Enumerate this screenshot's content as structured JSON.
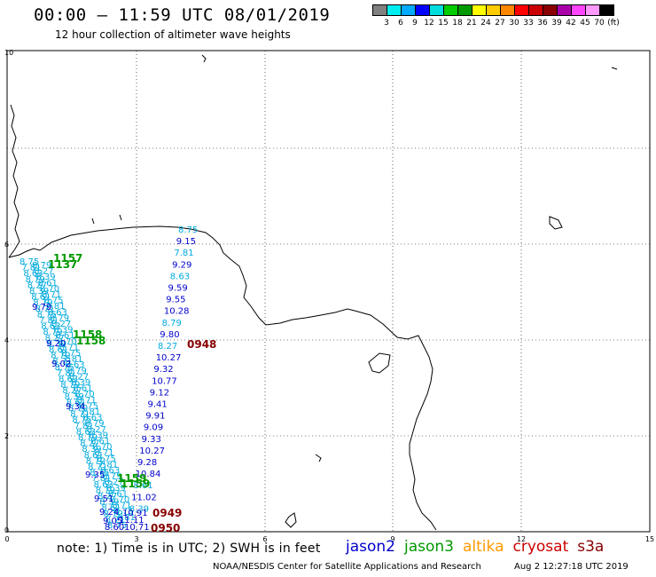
{
  "header": {
    "title": "00:00 – 11:59 UTC 08/01/2019",
    "subtitle": "12 hour collection of altimeter wave heights"
  },
  "legend": {
    "swatches": [
      "#808080",
      "#00eeee",
      "#00aaff",
      "#0000ff",
      "#00dddd",
      "#00cc00",
      "#009900",
      "#ffff00",
      "#ffcc00",
      "#ff8800",
      "#ff0000",
      "#cc0000",
      "#880000",
      "#aa00aa",
      "#ff44ff",
      "#ff99ff",
      "#000000"
    ],
    "labels": [
      "3",
      "6",
      "9",
      "12",
      "15",
      "18",
      "21",
      "24",
      "27",
      "30",
      "33",
      "36",
      "39",
      "42",
      "45",
      "70",
      "(ft)"
    ]
  },
  "axes": {
    "x_ticks": [
      "0",
      "3",
      "6",
      "9",
      "12",
      "15"
    ],
    "y_ticks": [
      "0",
      "2",
      "4",
      "6",
      "10"
    ]
  },
  "colors": {
    "jason2": "#0000cc",
    "jason3": "#009900",
    "altika": "#ff9900",
    "cryosat": "#cc0000",
    "s3a": "#880000",
    "light_track": "#00aadd",
    "coast": "#000000"
  },
  "tracks": {
    "jason2_dark": [
      "9.15",
      "9.29",
      "9.59",
      "9.55",
      "10.28",
      "9.80",
      "10.27",
      "9.32",
      "10.77",
      "9.12",
      "9.41",
      "9.91",
      "9.09",
      "9.33",
      "10.27",
      "9.28",
      "10.84",
      "11.02"
    ],
    "jason2_light": [
      "8.75",
      "7.81",
      "8.63",
      "8.79",
      "8.27",
      "8.39",
      "8.61",
      "8.70",
      "8.71"
    ],
    "left_track_visible": [
      "9.79",
      "9.20",
      "9.02",
      "9.34",
      "9.35",
      "9.51",
      "9.24",
      "9.05",
      "8.60"
    ],
    "bottom_cluster": [
      "10.71",
      "10.91",
      "11.11"
    ]
  },
  "time_labels": {
    "green": [
      "1157",
      "1137",
      "1158",
      "1158",
      "1159",
      "1159"
    ],
    "dark": [
      "0948",
      "0949",
      "0950"
    ]
  },
  "footer": {
    "note": "note: 1) Time is in UTC; 2) SWH is in feet",
    "sats": [
      {
        "name": "jason2",
        "color": "#0000cc"
      },
      {
        "name": "jason3",
        "color": "#009900"
      },
      {
        "name": "altika",
        "color": "#ff9900"
      },
      {
        "name": "cryosat",
        "color": "#cc0000"
      },
      {
        "name": "s3a",
        "color": "#880000"
      }
    ],
    "credit": "NOAA/NESDIS Center for Satellite Applications and Research",
    "timestamp": "Aug  2 12:27:18 UTC 2019"
  }
}
